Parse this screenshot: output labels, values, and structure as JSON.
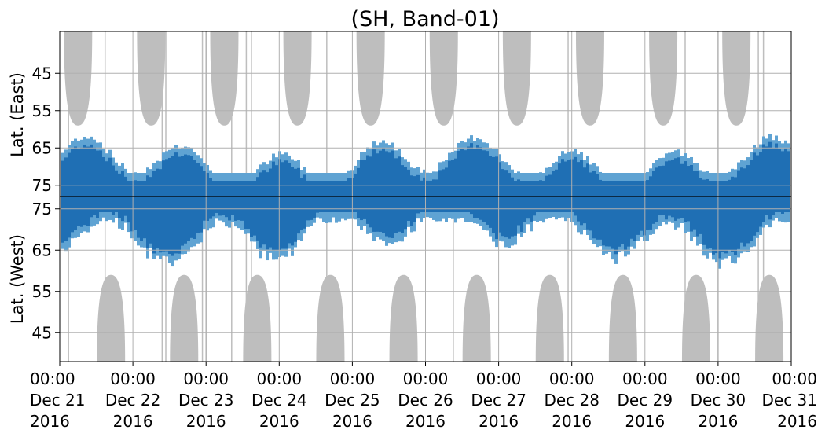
{
  "chart_data": {
    "type": "heatmap",
    "title": "(SH, Band-01)",
    "xlabel": "",
    "ylabel_top": "Lat. (East)",
    "ylabel_bottom": "Lat. (West)",
    "x_tick_labels": [
      [
        "00:00",
        "Dec 21",
        "2016"
      ],
      [
        "00:00",
        "Dec 22",
        "2016"
      ],
      [
        "00:00",
        "Dec 23",
        "2016"
      ],
      [
        "00:00",
        "Dec 24",
        "2016"
      ],
      [
        "00:00",
        "Dec 25",
        "2016"
      ],
      [
        "00:00",
        "Dec 26",
        "2016"
      ],
      [
        "00:00",
        "Dec 27",
        "2016"
      ],
      [
        "00:00",
        "Dec 28",
        "2016"
      ],
      [
        "00:00",
        "Dec 29",
        "2016"
      ],
      [
        "00:00",
        "Dec 30",
        "2016"
      ],
      [
        "00:00",
        "Dec 31",
        "2016"
      ]
    ],
    "xlim": [
      "2016-12-21 00:00",
      "2016-12-31 00:00"
    ],
    "y_tick_labels_top": [
      "45",
      "55",
      "65",
      "75"
    ],
    "y_tick_labels_bottom": [
      "75",
      "65",
      "55",
      "45"
    ],
    "grid": true,
    "colors": {
      "dense": "#1f6fb4",
      "sparse": "#5fa3d3",
      "shadow": "#bebebe",
      "grid": "#b0b0b0",
      "divider": "#000000"
    },
    "shaded_regions": {
      "east_day_centers": [
        0.25,
        1.25,
        2.25,
        3.25,
        4.25,
        5.25,
        6.25,
        7.25,
        8.25,
        9.25
      ],
      "west_day_centers": [
        0.7,
        1.7,
        2.7,
        3.7,
        4.7,
        5.7,
        6.7,
        7.7,
        8.7,
        9.7
      ],
      "east_lat_limit": 59,
      "west_lat_limit": 59
    },
    "vertical_gaps_days": [
      0.12,
      0.62,
      1.4,
      1.45,
      1.95,
      2.0,
      2.35,
      2.55,
      2.62,
      3.65,
      5.38,
      6.95,
      8.55,
      9.0,
      9.55,
      9.62
    ]
  }
}
